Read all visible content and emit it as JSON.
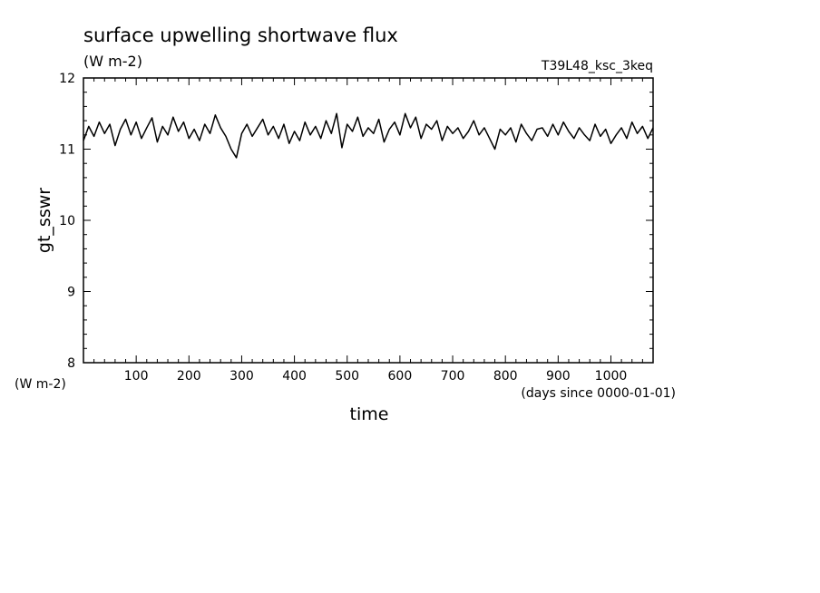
{
  "chart_data": {
    "type": "line",
    "title": "surface upwelling shortwave flux",
    "title_units": "(W m-2)",
    "run_label": "T39L48_ksc_3keq",
    "xlabel": "time",
    "x_units": "(days since 0000-01-01)",
    "ylabel": "gt_sswr",
    "y_units": "(W m-2)",
    "xlim": [
      0,
      1080
    ],
    "ylim": [
      8,
      12
    ],
    "x_ticks": [
      100,
      200,
      300,
      400,
      500,
      600,
      700,
      800,
      900,
      1000
    ],
    "y_ticks": [
      8,
      9,
      10,
      11,
      12
    ],
    "grid": false,
    "line_color": "#000000",
    "series": [
      {
        "x": [
          0,
          10,
          20,
          30,
          40,
          50,
          60,
          70,
          80,
          90,
          100,
          110,
          120,
          130,
          140,
          150,
          160,
          170,
          180,
          190,
          200,
          210,
          220,
          230,
          240,
          250,
          260,
          270,
          280,
          290,
          300,
          310,
          320,
          330,
          340,
          350,
          360,
          370,
          380,
          390,
          400,
          410,
          420,
          430,
          440,
          450,
          460,
          470,
          480,
          490,
          500,
          510,
          520,
          530,
          540,
          550,
          560,
          570,
          580,
          590,
          600,
          610,
          620,
          630,
          640,
          650,
          660,
          670,
          680,
          690,
          700,
          710,
          720,
          730,
          740,
          750,
          760,
          770,
          780,
          790,
          800,
          810,
          820,
          830,
          840,
          850,
          860,
          870,
          880,
          890,
          900,
          910,
          920,
          930,
          940,
          950,
          960,
          970,
          980,
          990,
          1000,
          1010,
          1020,
          1030,
          1040,
          1050,
          1060,
          1070,
          1080
        ],
        "values": [
          11.12,
          11.32,
          11.18,
          11.38,
          11.22,
          11.35,
          11.05,
          11.28,
          11.42,
          11.2,
          11.38,
          11.15,
          11.3,
          11.44,
          11.1,
          11.32,
          11.2,
          11.45,
          11.25,
          11.38,
          11.15,
          11.28,
          11.12,
          11.35,
          11.22,
          11.48,
          11.3,
          11.18,
          11.0,
          10.88,
          11.22,
          11.35,
          11.18,
          11.3,
          11.42,
          11.2,
          11.32,
          11.15,
          11.35,
          11.08,
          11.25,
          11.12,
          11.38,
          11.2,
          11.32,
          11.15,
          11.4,
          11.22,
          11.5,
          11.02,
          11.35,
          11.25,
          11.45,
          11.18,
          11.3,
          11.22,
          11.42,
          11.1,
          11.28,
          11.38,
          11.2,
          11.5,
          11.3,
          11.45,
          11.15,
          11.35,
          11.28,
          11.4,
          11.12,
          11.32,
          11.22,
          11.3,
          11.15,
          11.25,
          11.4,
          11.2,
          11.3,
          11.15,
          11.0,
          11.28,
          11.2,
          11.3,
          11.1,
          11.35,
          11.22,
          11.12,
          11.28,
          11.3,
          11.18,
          11.35,
          11.2,
          11.38,
          11.25,
          11.15,
          11.3,
          11.2,
          11.12,
          11.35,
          11.18,
          11.28,
          11.08,
          11.2,
          11.3,
          11.15,
          11.38,
          11.22,
          11.32,
          11.15,
          11.3
        ]
      }
    ]
  }
}
